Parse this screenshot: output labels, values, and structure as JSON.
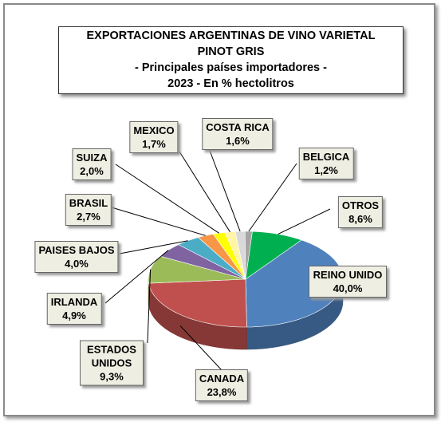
{
  "chart_data": {
    "type": "pie",
    "title": [
      "EXPORTACIONES ARGENTINAS DE VINO VARIETAL",
      "PINOT GRIS",
      "- Principales países importadores -",
      "2023 - En % hectolitros"
    ],
    "categories": [
      "REINO UNIDO",
      "CANADA",
      "ESTADOS UNIDOS",
      "IRLANDA",
      "PAISES BAJOS",
      "BRASIL",
      "SUIZA",
      "MEXICO",
      "COSTA RICA",
      "BELGICA",
      "OTROS"
    ],
    "values": [
      40.0,
      23.8,
      9.3,
      4.9,
      4.0,
      2.7,
      2.0,
      1.7,
      1.6,
      1.2,
      8.6
    ],
    "value_labels": [
      "40,0%",
      "23,8%",
      "9,3%",
      "4,9%",
      "4,0%",
      "2,7%",
      "2,0%",
      "1,7%",
      "1,6%",
      "1,2%",
      "8,6%"
    ],
    "colors": [
      "#4f81bd",
      "#c0504d",
      "#9bbb59",
      "#8064a2",
      "#4bacc6",
      "#f79646",
      "#ffff00",
      "#fff5a8",
      "#d9d9d9",
      "#a5a5a5",
      "#00b050"
    ]
  }
}
